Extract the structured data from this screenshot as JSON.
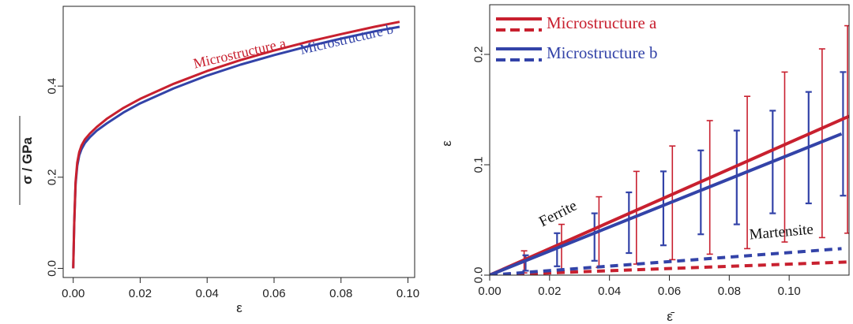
{
  "chart_data": [
    {
      "type": "line",
      "xlabel": "ε",
      "ylabel": "σ / GPa",
      "xlim": [
        -0.003,
        0.102
      ],
      "ylim": [
        -0.02,
        0.575
      ],
      "xticks": [
        "0.00",
        "0.02",
        "0.04",
        "0.06",
        "0.08",
        "0.10"
      ],
      "xtick_values": [
        0,
        0.02,
        0.04,
        0.06,
        0.08,
        0.1
      ],
      "yticks": [
        "0.0",
        "0.2",
        "0.4"
      ],
      "ytick_values": [
        0,
        0.2,
        0.4
      ],
      "grid": false,
      "colors": [
        "#c8202f",
        "#3343a8"
      ],
      "series": [
        {
          "name": "Microstructure a",
          "x": [
            0,
            0.0003,
            0.0007,
            0.0012,
            0.0018,
            0.0025,
            0.0035,
            0.005,
            0.007,
            0.01,
            0.015,
            0.02,
            0.03,
            0.04,
            0.05,
            0.06,
            0.07,
            0.08,
            0.09,
            0.0975
          ],
          "y": [
            0,
            0.1,
            0.19,
            0.232,
            0.255,
            0.27,
            0.283,
            0.296,
            0.31,
            0.328,
            0.352,
            0.372,
            0.405,
            0.433,
            0.457,
            0.478,
            0.497,
            0.514,
            0.53,
            0.541
          ]
        },
        {
          "name": "Microstructure b",
          "x": [
            0,
            0.0003,
            0.0007,
            0.0012,
            0.0018,
            0.0025,
            0.0035,
            0.005,
            0.007,
            0.01,
            0.015,
            0.02,
            0.03,
            0.04,
            0.05,
            0.06,
            0.07,
            0.08,
            0.09,
            0.0975
          ],
          "y": [
            0,
            0.1,
            0.185,
            0.225,
            0.248,
            0.262,
            0.275,
            0.288,
            0.302,
            0.318,
            0.342,
            0.362,
            0.395,
            0.423,
            0.447,
            0.468,
            0.487,
            0.504,
            0.52,
            0.53
          ]
        }
      ],
      "annotations": [
        {
          "text": "Microstructure a",
          "x": 0.05,
          "y": 0.462,
          "color": "#c8202f"
        },
        {
          "text": "Microstructure b",
          "x": 0.082,
          "y": 0.493,
          "color": "#3343a8"
        }
      ]
    },
    {
      "type": "line",
      "xlabel": "ε̄",
      "ylabel": "ε",
      "xlim": [
        0,
        0.12
      ],
      "ylim": [
        0,
        0.245
      ],
      "xticks": [
        "0.00",
        "0.02",
        "0.04",
        "0.06",
        "0.08",
        "0.10"
      ],
      "xtick_values": [
        0,
        0.02,
        0.04,
        0.06,
        0.08,
        0.1
      ],
      "yticks": [
        "0.0",
        "0.1",
        "0.2"
      ],
      "ytick_values": [
        0,
        0.1,
        0.2
      ],
      "grid": false,
      "colors": [
        "#c8202f",
        "#3343a8"
      ],
      "legend": {
        "position": "top-left",
        "entries": [
          "Microstructure a",
          "Microstructure b"
        ]
      },
      "series": [
        {
          "name": "Microstructure a",
          "phase": "Ferrite",
          "style": "solid",
          "color": "#c8202f",
          "x": [
            0,
            0.12
          ],
          "y": [
            0,
            0.144
          ]
        },
        {
          "name": "Microstructure b",
          "phase": "Ferrite",
          "style": "solid",
          "color": "#3343a8",
          "x": [
            0,
            0.1175
          ],
          "y": [
            0,
            0.128
          ]
        },
        {
          "name": "Microstructure a",
          "phase": "Martensite",
          "style": "dashed",
          "color": "#c8202f",
          "x": [
            0,
            0.12
          ],
          "y": [
            0,
            0.012
          ]
        },
        {
          "name": "Microstructure b",
          "phase": "Martensite",
          "style": "dashed",
          "color": "#3343a8",
          "x": [
            0,
            0.1175
          ],
          "y": [
            0,
            0.024
          ]
        }
      ],
      "error_bars": [
        {
          "name": "Microstructure a",
          "color": "#c8202f",
          "x": [
            0.0115,
            0.024,
            0.0365,
            0.049,
            0.061,
            0.0735,
            0.086,
            0.0985,
            0.111,
            0.1195
          ],
          "high": [
            0.022,
            0.046,
            0.071,
            0.094,
            0.117,
            0.14,
            0.162,
            0.184,
            0.205,
            0.226
          ],
          "low": [
            0.002,
            0.004,
            0.007,
            0.01,
            0.014,
            0.019,
            0.024,
            0.03,
            0.034,
            0.038
          ]
        },
        {
          "name": "Microstructure b",
          "color": "#3343a8",
          "x": [
            0.012,
            0.0225,
            0.035,
            0.0465,
            0.058,
            0.0705,
            0.0825,
            0.0945,
            0.1065,
            0.118
          ],
          "high": [
            0.018,
            0.038,
            0.056,
            0.075,
            0.094,
            0.113,
            0.131,
            0.149,
            0.166,
            0.184
          ],
          "low": [
            0.004,
            0.008,
            0.013,
            0.02,
            0.027,
            0.037,
            0.046,
            0.056,
            0.065,
            0.072
          ]
        }
      ],
      "annotations": [
        {
          "text": "Ferrite",
          "x": 0.0235,
          "y": 0.052,
          "color": "#111111"
        },
        {
          "text": "Martensite",
          "x": 0.0975,
          "y": 0.035,
          "color": "#111111"
        }
      ]
    }
  ]
}
